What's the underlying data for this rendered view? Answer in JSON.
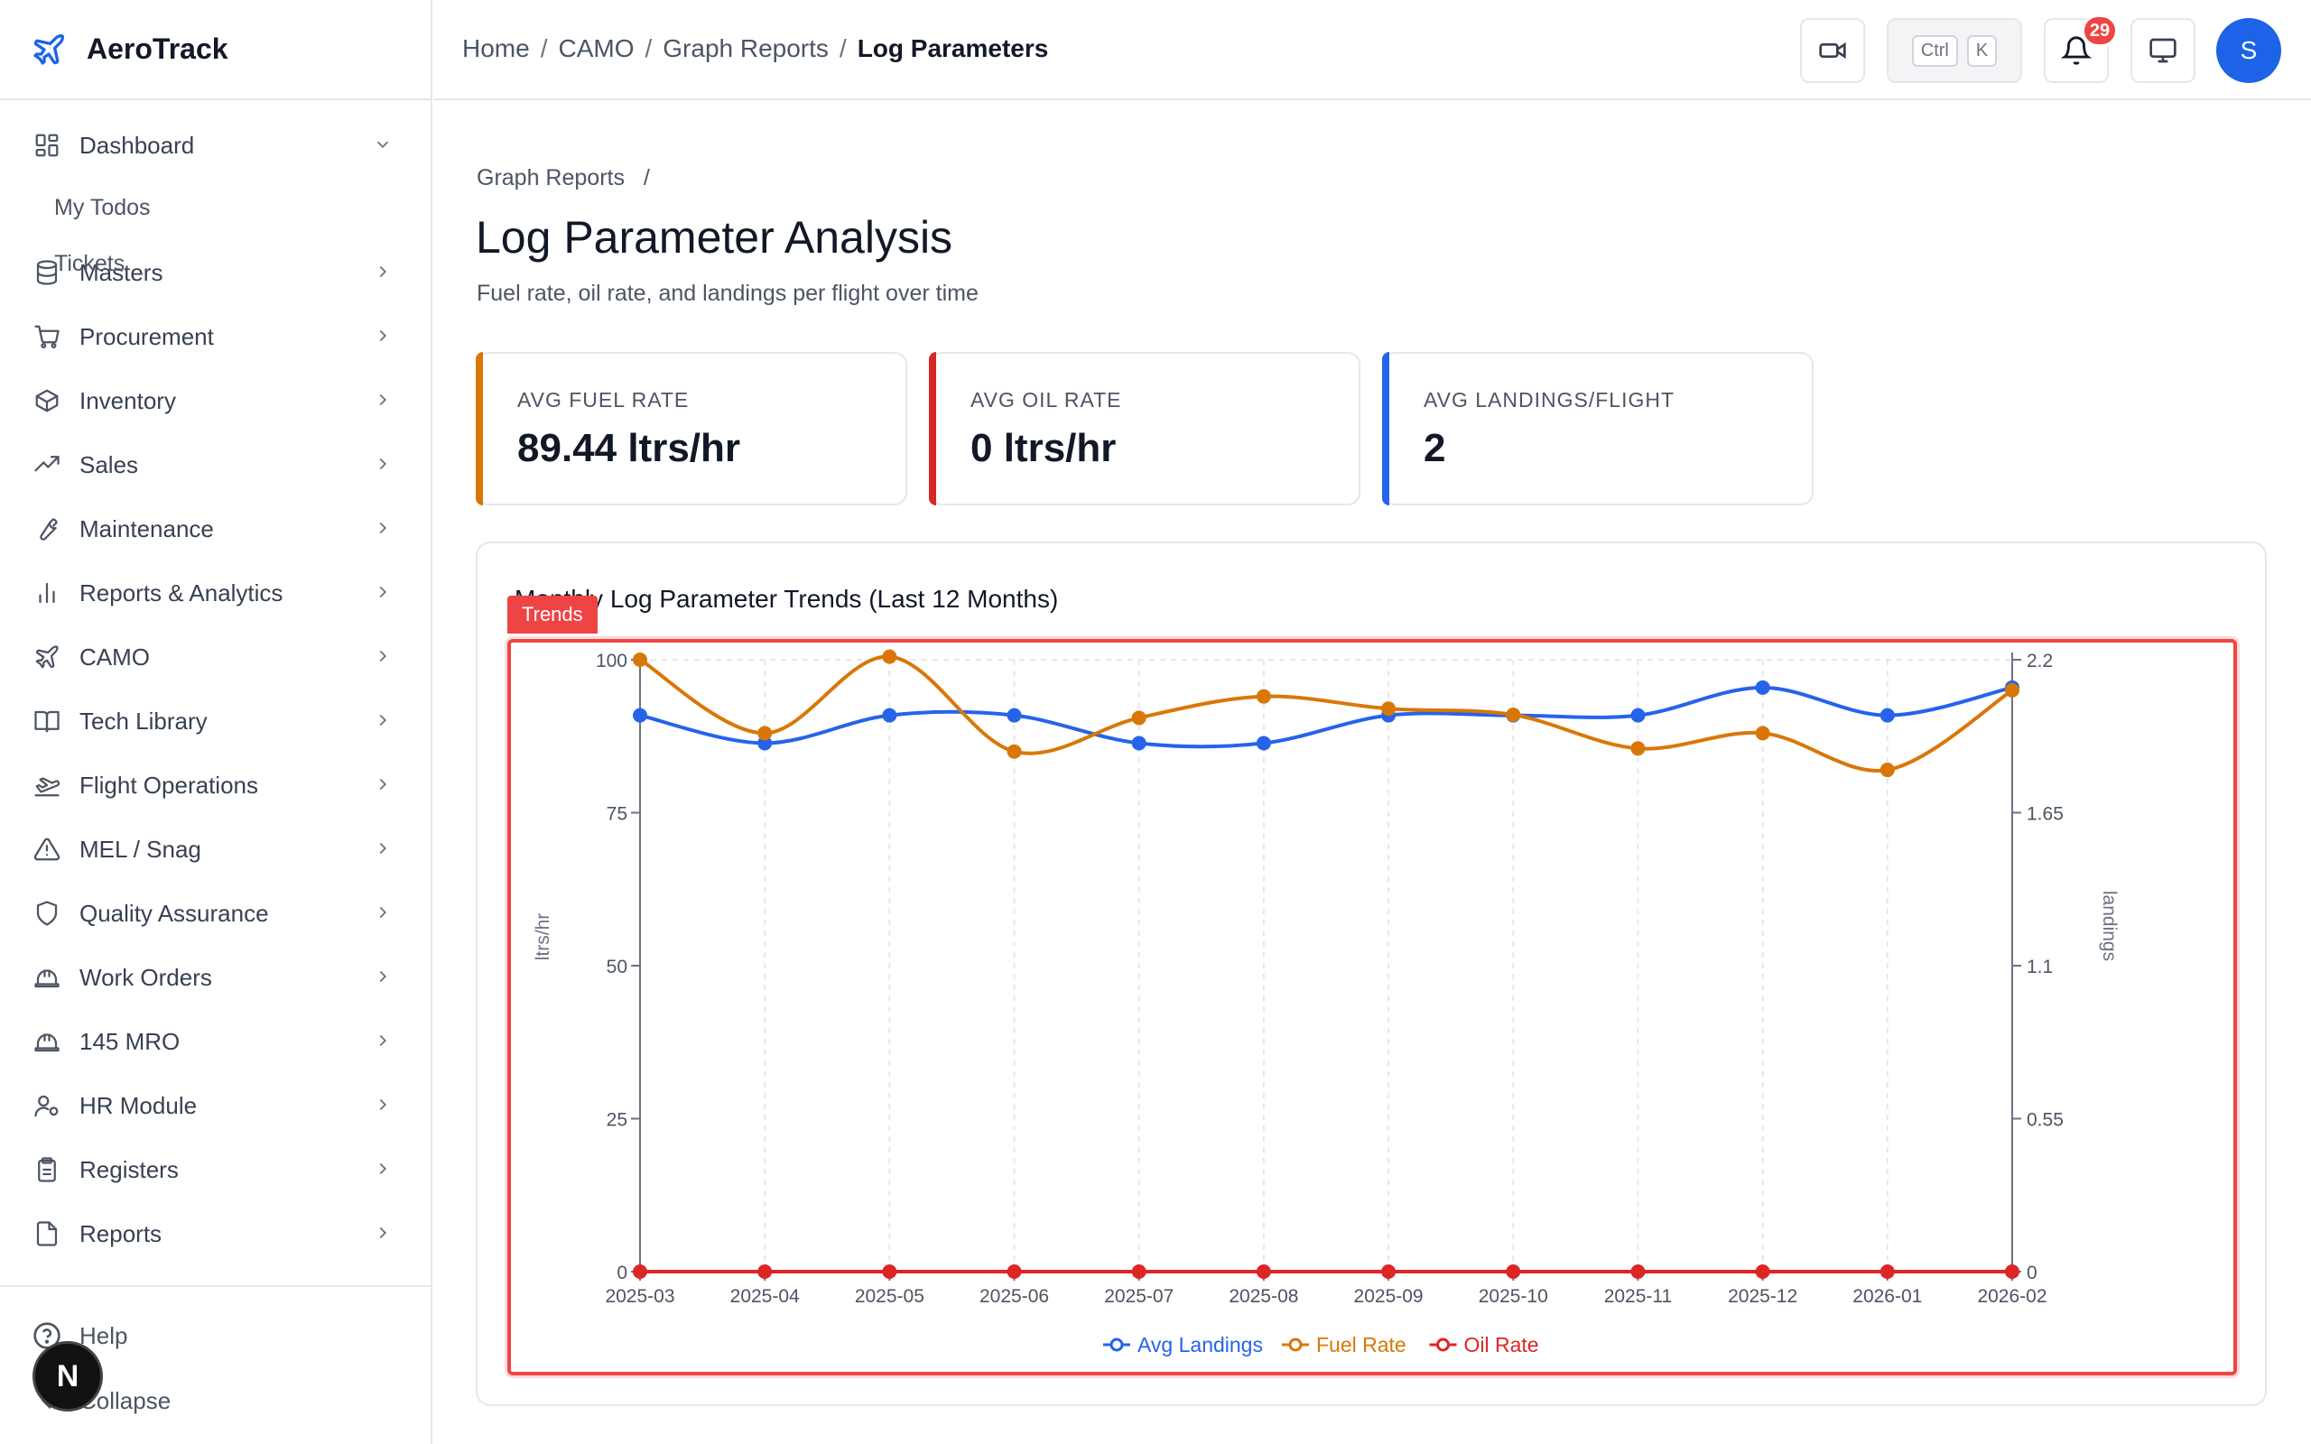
{
  "brand": {
    "name": "AeroTrack",
    "icon": "plane-icon"
  },
  "sidebar": {
    "items": [
      {
        "label": "Dashboard",
        "icon": "dashboard-icon",
        "expanded": true
      },
      {
        "label": "Masters",
        "icon": "database-icon"
      },
      {
        "label": "Procurement",
        "icon": "cart-icon"
      },
      {
        "label": "Inventory",
        "icon": "box-icon"
      },
      {
        "label": "Sales",
        "icon": "trending-up-icon"
      },
      {
        "label": "Maintenance",
        "icon": "wrench-icon"
      },
      {
        "label": "Reports & Analytics",
        "icon": "bar-chart-icon"
      },
      {
        "label": "CAMO",
        "icon": "plane-icon"
      },
      {
        "label": "Tech Library",
        "icon": "book-icon"
      },
      {
        "label": "Flight Operations",
        "icon": "plane-takeoff-icon"
      },
      {
        "label": "MEL / Snag",
        "icon": "warning-icon"
      },
      {
        "label": "Quality Assurance",
        "icon": "shield-icon"
      },
      {
        "label": "Work Orders",
        "icon": "hard-hat-icon"
      },
      {
        "label": "145 MRO",
        "icon": "hard-hat-icon"
      },
      {
        "label": "HR Module",
        "icon": "user-cog-icon"
      },
      {
        "label": "Registers",
        "icon": "clipboard-icon"
      },
      {
        "label": "Reports",
        "icon": "file-icon"
      }
    ],
    "sub_items": [
      "My Todos",
      "Tickets"
    ],
    "footer": {
      "help": "Help",
      "collapse": "Collapse"
    },
    "next_badge": "N"
  },
  "topbar": {
    "breadcrumb": [
      "Home",
      "CAMO",
      "Graph Reports",
      "Log Parameters"
    ],
    "kbd": [
      "Ctrl",
      "K"
    ],
    "notification_count": "29",
    "avatar_initial": "S"
  },
  "page": {
    "breadcrumb": "Graph Reports",
    "breadcrumb_sep": "/",
    "title": "Log Parameter Analysis",
    "subtitle": "Fuel rate, oil rate, and landings per flight over time"
  },
  "stats": [
    {
      "label": "AVG FUEL RATE",
      "value": "89.44 ltrs/hr",
      "color": "#d97706"
    },
    {
      "label": "AVG OIL RATE",
      "value": "0 ltrs/hr",
      "color": "#dc2626"
    },
    {
      "label": "AVG LANDINGS/FLIGHT",
      "value": "2",
      "color": "#2563eb"
    }
  ],
  "chart_card": {
    "title": "Monthly Log Parameter Trends (Last 12 Months)",
    "tag": "Trends"
  },
  "chart_data": {
    "type": "line",
    "title": "Monthly Log Parameter Trends (Last 12 Months)",
    "categories": [
      "2025-03",
      "2025-04",
      "2025-05",
      "2025-06",
      "2025-07",
      "2025-08",
      "2025-09",
      "2025-10",
      "2025-11",
      "2025-12",
      "2026-01",
      "2026-02"
    ],
    "y_left": {
      "label": "ltrs/hr",
      "range": [
        0,
        100
      ],
      "ticks": [
        "0",
        "25",
        "50",
        "75",
        "100"
      ]
    },
    "y_right": {
      "label": "landings",
      "range": [
        0,
        2.2
      ],
      "ticks": [
        "0",
        "0.55",
        "1.1",
        "1.65",
        "2.2"
      ]
    },
    "series": [
      {
        "name": "Avg Landings",
        "axis": "right",
        "color": "#2563eb",
        "values": [
          2.0,
          1.9,
          2.0,
          2.0,
          1.9,
          1.9,
          2.0,
          2.0,
          2.0,
          2.1,
          2.0,
          2.1
        ]
      },
      {
        "name": "Fuel Rate",
        "axis": "left",
        "color": "#d97706",
        "values": [
          100,
          88,
          100.5,
          85,
          90.5,
          94,
          92,
          91,
          85.5,
          88,
          82,
          95
        ]
      },
      {
        "name": "Oil Rate",
        "axis": "left",
        "color": "#dc2626",
        "values": [
          0,
          0,
          0,
          0,
          0,
          0,
          0,
          0,
          0,
          0,
          0,
          0
        ]
      }
    ],
    "legend": "bottom-center",
    "grid": "vertical-dashed",
    "smooth": true
  }
}
